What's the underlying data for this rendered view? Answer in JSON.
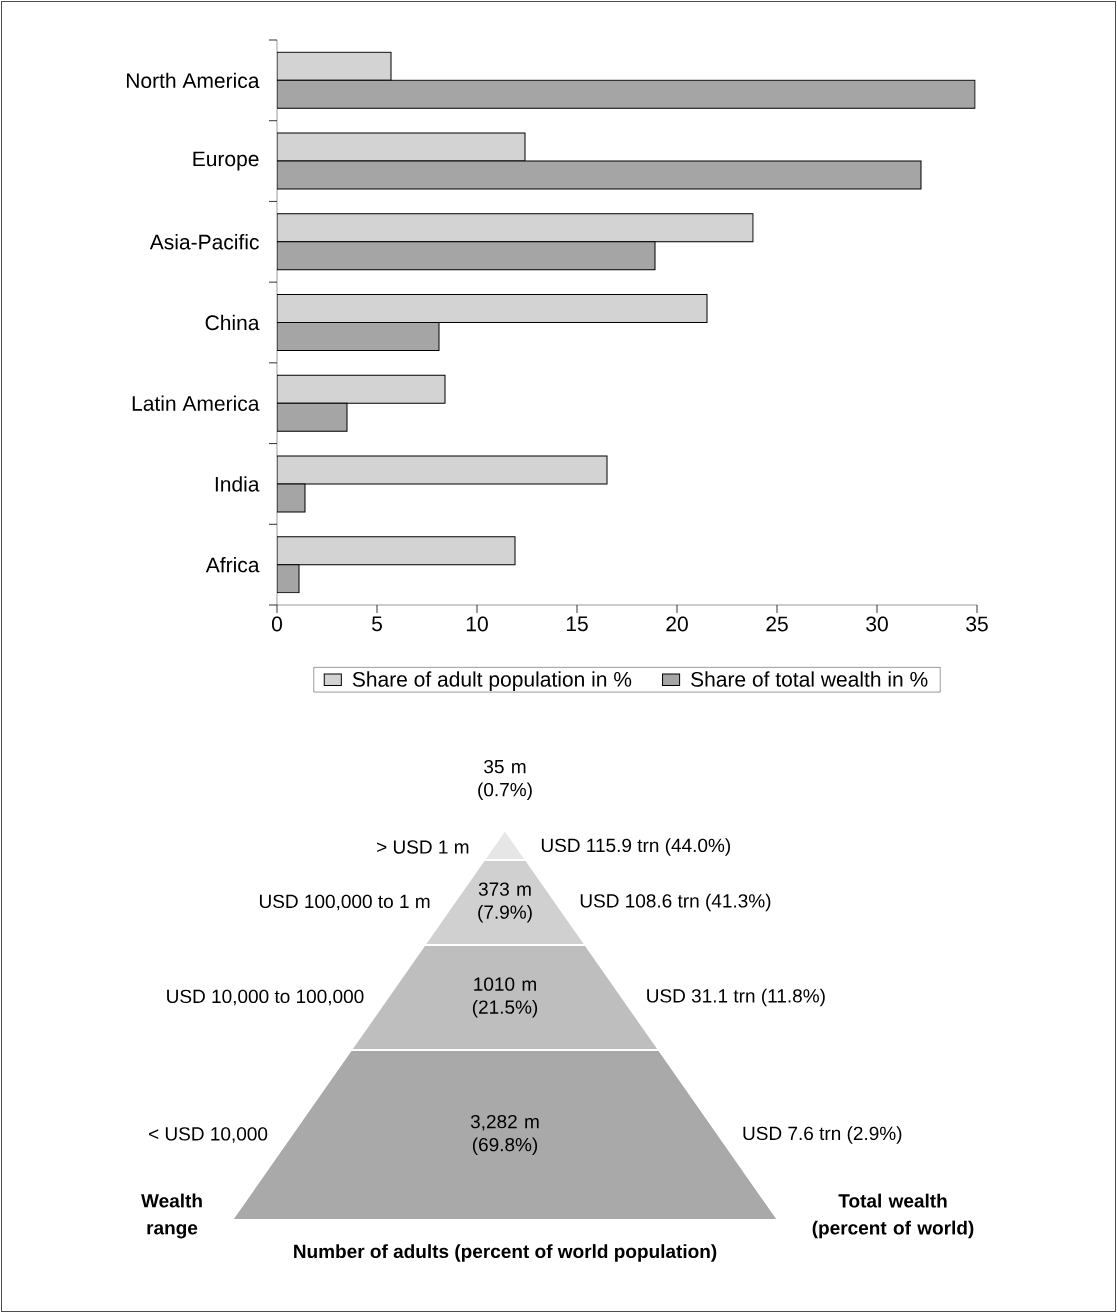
{
  "chart_data": [
    {
      "type": "bar",
      "orientation": "horizontal",
      "categories": [
        "North America",
        "Europe",
        "Asia-Pacific",
        "China",
        "Latin America",
        "India",
        "Africa"
      ],
      "series": [
        {
          "name": "Share of adult population in %",
          "color": "#d3d3d3",
          "values": [
            5.7,
            12.4,
            23.8,
            21.5,
            8.4,
            16.5,
            11.9
          ]
        },
        {
          "name": "Share of total wealth in %",
          "color": "#a5a5a5",
          "values": [
            34.9,
            32.2,
            18.9,
            8.1,
            3.5,
            1.4,
            1.1
          ]
        }
      ],
      "xlim": [
        0,
        35
      ],
      "xticks": [
        0,
        5,
        10,
        15,
        20,
        25,
        30,
        35
      ],
      "legend": "bottom"
    },
    {
      "type": "other",
      "categories": [
        "> USD 1 m",
        "USD 100,000 to 1 m",
        "USD 10,000 to 100,000",
        "< USD 10,000"
      ],
      "series": [
        {
          "colors": [
            "#e6e6e6",
            "#d0d0d0",
            "#bebebe",
            "#a9a9a9"
          ],
          "values": [
            35,
            373,
            1010,
            3282
          ],
          "value_labels": [
            "35 m (0.7%)",
            "373 m (7.9%)",
            "1010 m (21.5%)",
            "3,282 m (69.8%)"
          ]
        },
        {
          "values": [
            115.9,
            108.6,
            31.1,
            7.6
          ],
          "value_labels": [
            "USD 115.9 trn (44.0%)",
            "USD 108.6 trn (41.3%)",
            "USD 31.1 trn (11.8%)",
            "USD 7.6 trn (2.9%)"
          ]
        }
      ],
      "xlabel": "Number of adults (percent of world population)",
      "ylabel": "Wealth range",
      "y2label": "Total wealth (percent of world)"
    }
  ]
}
